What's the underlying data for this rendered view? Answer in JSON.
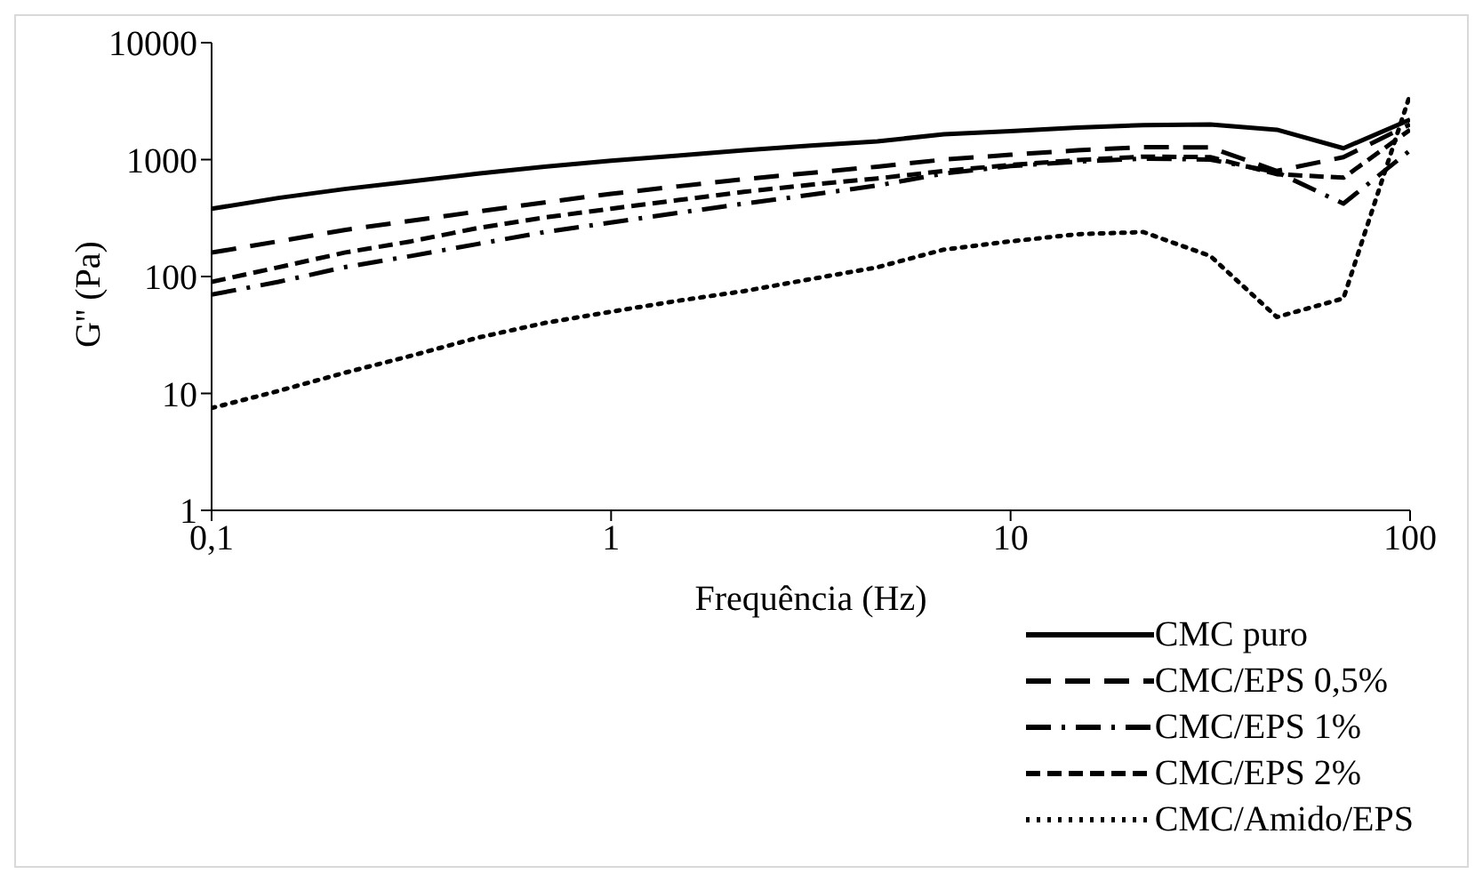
{
  "chart_data": {
    "type": "line",
    "xlabel": "Frequência (Hz)",
    "ylabel": "G'' (Pa)",
    "x": [
      0.1,
      0.147,
      0.215,
      0.316,
      0.464,
      0.681,
      1,
      1.47,
      2.15,
      3.16,
      4.64,
      6.81,
      10,
      14.7,
      21.5,
      31.6,
      46.4,
      68.1,
      100
    ],
    "series": [
      {
        "name": "CMC puro",
        "color": "#000000",
        "line_style": "solid",
        "values": [
          380,
          470,
          560,
          650,
          760,
          870,
          980,
          1080,
          1200,
          1320,
          1430,
          1650,
          1750,
          1880,
          1970,
          2000,
          1800,
          1250,
          2200
        ]
      },
      {
        "name": "CMC/EPS 0,5%",
        "color": "#000000",
        "line_style": "dashed",
        "values": [
          160,
          200,
          250,
          300,
          360,
          430,
          510,
          590,
          680,
          770,
          870,
          1000,
          1100,
          1200,
          1280,
          1270,
          800,
          1050,
          2000
        ]
      },
      {
        "name": "CMC/EPS 1%",
        "color": "#000000",
        "line_style": "dashdot",
        "values": [
          70,
          90,
          120,
          150,
          190,
          240,
          290,
          350,
          420,
          500,
          600,
          760,
          880,
          960,
          1020,
          1000,
          780,
          420,
          1200
        ]
      },
      {
        "name": "CMC/EPS 2%",
        "color": "#000000",
        "line_style": "shortdash",
        "values": [
          90,
          120,
          160,
          200,
          260,
          320,
          380,
          450,
          530,
          610,
          690,
          800,
          900,
          990,
          1060,
          1050,
          750,
          700,
          1800
        ]
      },
      {
        "name": "CMC/Amido/EPS",
        "color": "#000000",
        "line_style": "dotted",
        "values": [
          7.5,
          10.5,
          15,
          21,
          30,
          40,
          50,
          62,
          75,
          95,
          120,
          170,
          200,
          230,
          240,
          150,
          45,
          65,
          3600
        ]
      }
    ],
    "log": "xy",
    "xlim": [
      0.1,
      100
    ],
    "xticks": [
      {
        "value": 0.1,
        "label": "0,1"
      },
      1,
      10,
      100
    ],
    "ylim": [
      1,
      10000
    ],
    "yticks": [
      1,
      10,
      100,
      1000,
      10000
    ],
    "grid": false,
    "legend": "bottom right",
    "marker": "none"
  }
}
